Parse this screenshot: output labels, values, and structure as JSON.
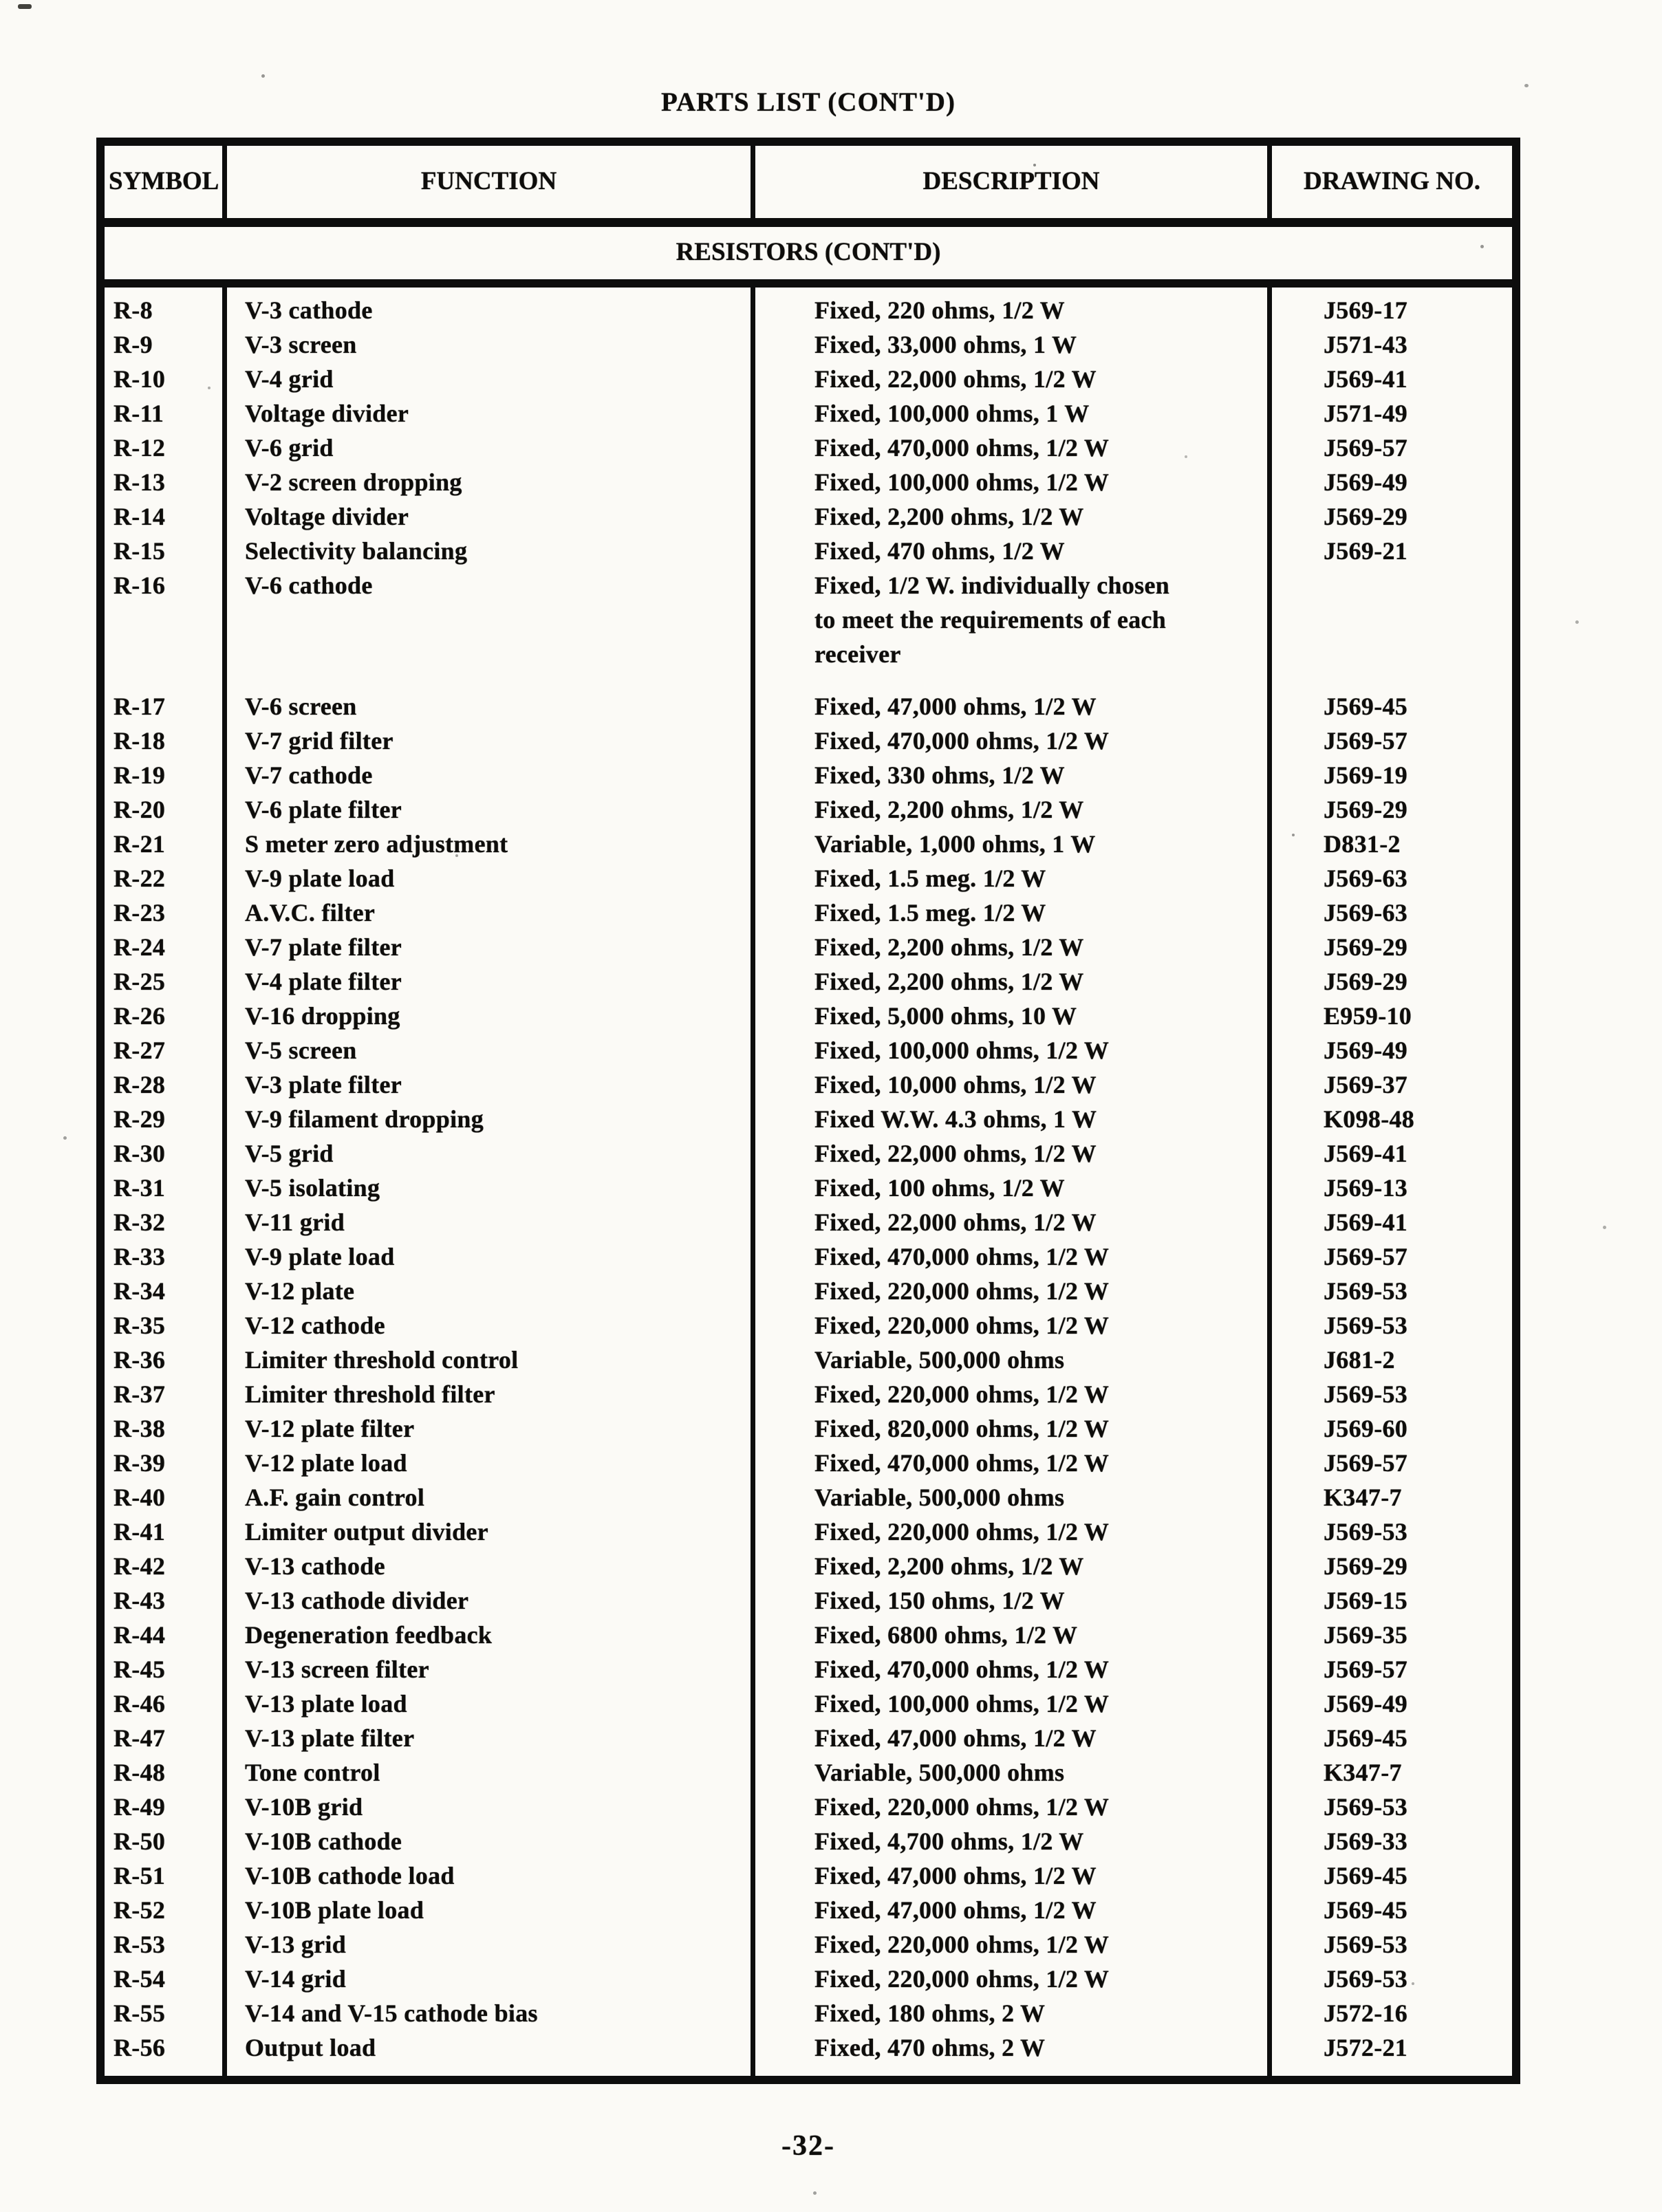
{
  "page": {
    "title": "PARTS LIST (CONT'D)",
    "page_number": "-32-"
  },
  "colors": {
    "ink": "#0d0d0d",
    "paper": "#fbfaf6"
  },
  "table": {
    "headers": [
      "SYMBOL",
      "FUNCTION",
      "DESCRIPTION",
      "DRAWING NO."
    ],
    "section_header": "RESISTORS (CONT'D)",
    "rows": [
      {
        "symbol": "R-8",
        "function": "V-3 cathode",
        "description": [
          "Fixed, 220 ohms, 1/2 W"
        ],
        "drawing_no": "J569-17"
      },
      {
        "symbol": "R-9",
        "function": "V-3 screen",
        "description": [
          "Fixed, 33,000 ohms, 1 W"
        ],
        "drawing_no": "J571-43"
      },
      {
        "symbol": "R-10",
        "function": "V-4 grid",
        "description": [
          "Fixed, 22,000 ohms, 1/2 W"
        ],
        "drawing_no": "J569-41"
      },
      {
        "symbol": "R-11",
        "function": "Voltage divider",
        "description": [
          "Fixed, 100,000 ohms, 1 W"
        ],
        "drawing_no": "J571-49"
      },
      {
        "symbol": "R-12",
        "function": "V-6 grid",
        "description": [
          "Fixed, 470,000 ohms, 1/2 W"
        ],
        "drawing_no": "J569-57"
      },
      {
        "symbol": "R-13",
        "function": "V-2 screen dropping",
        "description": [
          "Fixed, 100,000 ohms, 1/2 W"
        ],
        "drawing_no": "J569-49"
      },
      {
        "symbol": "R-14",
        "function": "Voltage divider",
        "description": [
          "Fixed, 2,200 ohms, 1/2 W"
        ],
        "drawing_no": "J569-29"
      },
      {
        "symbol": "R-15",
        "function": "Selectivity balancing",
        "description": [
          "Fixed, 470 ohms, 1/2 W"
        ],
        "drawing_no": "J569-21"
      },
      {
        "symbol": "R-16",
        "function": "V-6 cathode",
        "description": [
          "Fixed, 1/2 W. individually chosen",
          "to meet the requirements of each",
          "receiver"
        ],
        "drawing_no": ""
      },
      {
        "symbol": "R-17",
        "function": "V-6 screen",
        "description": [
          "Fixed, 47,000 ohms, 1/2 W"
        ],
        "drawing_no": "J569-45"
      },
      {
        "symbol": "R-18",
        "function": "V-7 grid filter",
        "description": [
          "Fixed, 470,000 ohms, 1/2 W"
        ],
        "drawing_no": "J569-57"
      },
      {
        "symbol": "R-19",
        "function": "V-7 cathode",
        "description": [
          "Fixed, 330 ohms, 1/2 W"
        ],
        "drawing_no": "J569-19"
      },
      {
        "symbol": "R-20",
        "function": "V-6 plate filter",
        "description": [
          "Fixed, 2,200 ohms, 1/2 W"
        ],
        "drawing_no": "J569-29"
      },
      {
        "symbol": "R-21",
        "function": "S meter zero adjustment",
        "description": [
          "Variable, 1,000 ohms, 1 W"
        ],
        "drawing_no": "D831-2"
      },
      {
        "symbol": "R-22",
        "function": "V-9 plate load",
        "description": [
          "Fixed, 1.5 meg. 1/2 W"
        ],
        "drawing_no": "J569-63"
      },
      {
        "symbol": "R-23",
        "function": "A.V.C. filter",
        "description": [
          "Fixed, 1.5 meg. 1/2 W"
        ],
        "drawing_no": "J569-63"
      },
      {
        "symbol": "R-24",
        "function": "V-7 plate filter",
        "description": [
          "Fixed, 2,200 ohms, 1/2 W"
        ],
        "drawing_no": "J569-29"
      },
      {
        "symbol": "R-25",
        "function": "V-4 plate filter",
        "description": [
          "Fixed, 2,200 ohms, 1/2 W"
        ],
        "drawing_no": "J569-29"
      },
      {
        "symbol": "R-26",
        "function": "V-16 dropping",
        "description": [
          "Fixed, 5,000 ohms, 10 W"
        ],
        "drawing_no": "E959-10"
      },
      {
        "symbol": "R-27",
        "function": "V-5 screen",
        "description": [
          "Fixed, 100,000 ohms, 1/2 W"
        ],
        "drawing_no": "J569-49"
      },
      {
        "symbol": "R-28",
        "function": "V-3 plate filter",
        "description": [
          "Fixed, 10,000 ohms, 1/2 W"
        ],
        "drawing_no": "J569-37"
      },
      {
        "symbol": "R-29",
        "function": "V-9 filament dropping",
        "description": [
          "Fixed W.W. 4.3 ohms, 1 W"
        ],
        "drawing_no": "K098-48"
      },
      {
        "symbol": "R-30",
        "function": "V-5 grid",
        "description": [
          "Fixed, 22,000 ohms, 1/2 W"
        ],
        "drawing_no": "J569-41"
      },
      {
        "symbol": "R-31",
        "function": "V-5 isolating",
        "description": [
          "Fixed, 100 ohms, 1/2 W"
        ],
        "drawing_no": "J569-13"
      },
      {
        "symbol": "R-32",
        "function": "V-11 grid",
        "description": [
          "Fixed, 22,000 ohms, 1/2 W"
        ],
        "drawing_no": "J569-41"
      },
      {
        "symbol": "R-33",
        "function": "V-9 plate load",
        "description": [
          "Fixed, 470,000 ohms, 1/2 W"
        ],
        "drawing_no": "J569-57"
      },
      {
        "symbol": "R-34",
        "function": "V-12 plate",
        "description": [
          "Fixed, 220,000 ohms, 1/2 W"
        ],
        "drawing_no": "J569-53"
      },
      {
        "symbol": "R-35",
        "function": "V-12 cathode",
        "description": [
          "Fixed, 220,000 ohms, 1/2 W"
        ],
        "drawing_no": "J569-53"
      },
      {
        "symbol": "R-36",
        "function": "Limiter threshold control",
        "description": [
          "Variable, 500,000 ohms"
        ],
        "drawing_no": "J681-2"
      },
      {
        "symbol": "R-37",
        "function": "Limiter threshold filter",
        "description": [
          "Fixed, 220,000 ohms, 1/2 W"
        ],
        "drawing_no": "J569-53"
      },
      {
        "symbol": "R-38",
        "function": "V-12 plate filter",
        "description": [
          "Fixed, 820,000 ohms, 1/2 W"
        ],
        "drawing_no": "J569-60"
      },
      {
        "symbol": "R-39",
        "function": "V-12 plate load",
        "description": [
          "Fixed, 470,000 ohms, 1/2 W"
        ],
        "drawing_no": "J569-57"
      },
      {
        "symbol": "R-40",
        "function": "A.F. gain control",
        "description": [
          "Variable, 500,000 ohms"
        ],
        "drawing_no": "K347-7"
      },
      {
        "symbol": "R-41",
        "function": "Limiter output divider",
        "description": [
          "Fixed, 220,000 ohms, 1/2 W"
        ],
        "drawing_no": "J569-53"
      },
      {
        "symbol": "R-42",
        "function": "V-13 cathode",
        "description": [
          "Fixed, 2,200 ohms, 1/2 W"
        ],
        "drawing_no": "J569-29"
      },
      {
        "symbol": "R-43",
        "function": "V-13 cathode divider",
        "description": [
          "Fixed, 150 ohms, 1/2 W"
        ],
        "drawing_no": "J569-15"
      },
      {
        "symbol": "R-44",
        "function": "Degeneration feedback",
        "description": [
          "Fixed, 6800 ohms, 1/2 W"
        ],
        "drawing_no": "J569-35"
      },
      {
        "symbol": "R-45",
        "function": "V-13 screen filter",
        "description": [
          "Fixed, 470,000 ohms, 1/2 W"
        ],
        "drawing_no": "J569-57"
      },
      {
        "symbol": "R-46",
        "function": "V-13 plate load",
        "description": [
          "Fixed, 100,000 ohms, 1/2 W"
        ],
        "drawing_no": "J569-49"
      },
      {
        "symbol": "R-47",
        "function": "V-13 plate filter",
        "description": [
          "Fixed, 47,000 ohms, 1/2 W"
        ],
        "drawing_no": "J569-45"
      },
      {
        "symbol": "R-48",
        "function": "Tone control",
        "description": [
          "Variable, 500,000 ohms"
        ],
        "drawing_no": "K347-7"
      },
      {
        "symbol": "R-49",
        "function": "V-10B grid",
        "description": [
          "Fixed, 220,000 ohms, 1/2 W"
        ],
        "drawing_no": "J569-53"
      },
      {
        "symbol": "R-50",
        "function": "V-10B cathode",
        "description": [
          "Fixed, 4,700 ohms, 1/2 W"
        ],
        "drawing_no": "J569-33"
      },
      {
        "symbol": "R-51",
        "function": "V-10B cathode load",
        "description": [
          "Fixed, 47,000 ohms, 1/2 W"
        ],
        "drawing_no": "J569-45"
      },
      {
        "symbol": "R-52",
        "function": "V-10B plate load",
        "description": [
          "Fixed, 47,000 ohms, 1/2 W"
        ],
        "drawing_no": "J569-45"
      },
      {
        "symbol": "R-53",
        "function": "V-13 grid",
        "description": [
          "Fixed, 220,000 ohms, 1/2 W"
        ],
        "drawing_no": "J569-53"
      },
      {
        "symbol": "R-54",
        "function": "V-14 grid",
        "description": [
          "Fixed, 220,000 ohms, 1/2 W"
        ],
        "drawing_no": "J569-53"
      },
      {
        "symbol": "R-55",
        "function": "V-14 and V-15 cathode bias",
        "description": [
          "Fixed, 180 ohms, 2 W"
        ],
        "drawing_no": "J572-16"
      },
      {
        "symbol": "R-56",
        "function": "Output load",
        "description": [
          "Fixed, 470 ohms, 2 W"
        ],
        "drawing_no": "J572-21"
      }
    ]
  }
}
